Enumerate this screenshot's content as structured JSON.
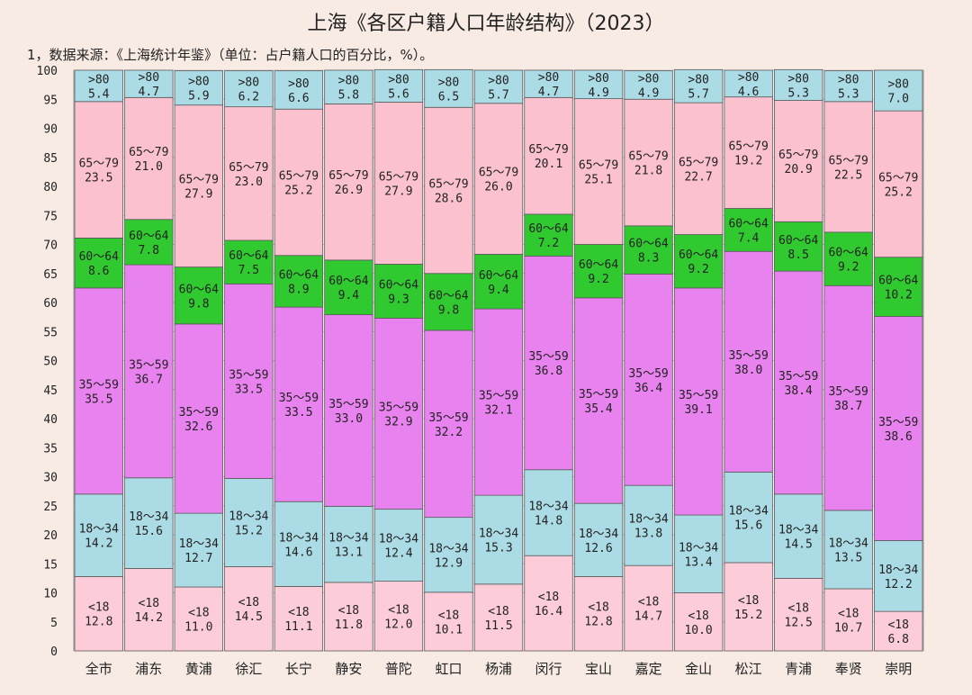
{
  "chart_data": {
    "type": "bar",
    "stacked": true,
    "title": "上海《各区户籍人口年龄结构》（2023）",
    "subtitle": "1，数据来源：《上海统计年鉴》（单位：占户籍人口的百分比，%）。",
    "ylim": [
      0,
      100
    ],
    "yticks": [
      "0",
      "5",
      "10",
      "15",
      "20",
      "25",
      "30",
      "35",
      "40",
      "45",
      "50",
      "55",
      "60",
      "65",
      "70",
      "75",
      "80",
      "85",
      "90",
      "95",
      "100"
    ],
    "categories": [
      "全市",
      "浦东",
      "黄浦",
      "徐汇",
      "长宁",
      "静安",
      "普陀",
      "虹口",
      "杨浦",
      "闵行",
      "宝山",
      "嘉定",
      "金山",
      "松江",
      "青浦",
      "奉贤",
      "崇明"
    ],
    "colors": {
      "<18": "#fccdd8",
      "18~34": "#abdbe5",
      "35~59": "#e882ee",
      "60~64": "#30c930",
      "65~79": "#fbc1cf",
      ">80": "#abdbe5"
    },
    "series": [
      {
        "name": "<18",
        "label": "<18",
        "values": [
          12.8,
          14.2,
          11.0,
          14.5,
          11.1,
          11.8,
          12.0,
          10.1,
          11.5,
          16.4,
          12.8,
          14.7,
          10.0,
          15.2,
          12.5,
          10.7,
          6.8
        ],
        "value_labels": [
          "12.8",
          "14.2",
          "11.0",
          "14.5",
          "11.1",
          "11.8",
          "12.0",
          "10.1",
          "11.5",
          "16.4",
          "12.8",
          "14.7",
          "10.0",
          "15.2",
          "12.5",
          "10.7",
          "6.8"
        ]
      },
      {
        "name": "18~34",
        "label": "18～34",
        "values": [
          14.2,
          15.6,
          12.7,
          15.2,
          14.6,
          13.1,
          12.4,
          12.9,
          15.3,
          14.8,
          12.6,
          13.8,
          13.4,
          15.6,
          14.5,
          13.5,
          12.2
        ],
        "value_labels": [
          "14.2",
          "15.6",
          "12.7",
          "15.2",
          "14.6",
          "13.1",
          "12.4",
          "12.9",
          "15.3",
          "14.8",
          "12.6",
          "13.8",
          "13.4",
          "15.6",
          "14.5",
          "13.5",
          "12.2"
        ]
      },
      {
        "name": "35~59",
        "label": "35～59",
        "values": [
          35.5,
          36.7,
          32.6,
          33.5,
          33.5,
          33.0,
          32.9,
          32.2,
          32.1,
          36.8,
          35.4,
          36.4,
          39.1,
          38.0,
          38.4,
          38.7,
          38.6
        ],
        "value_labels": [
          "35.5",
          "36.7",
          "32.6",
          "33.5",
          "33.5",
          "33.0",
          "32.9",
          "32.2",
          "32.1",
          "36.8",
          "35.4",
          "36.4",
          "39.1",
          "38.0",
          "38.4",
          "38.7",
          "38.6"
        ]
      },
      {
        "name": "60~64",
        "label": "60～64",
        "values": [
          8.6,
          7.8,
          9.8,
          7.5,
          8.9,
          9.4,
          9.3,
          9.8,
          9.4,
          7.2,
          9.2,
          8.3,
          9.2,
          7.4,
          8.5,
          9.2,
          10.2
        ],
        "value_labels": [
          "8.6",
          "7.8",
          "9.8",
          "7.5",
          "8.9",
          "9.4",
          "9.3",
          "9.8",
          "9.4",
          "7.2",
          "9.2",
          "8.3",
          "9.2",
          "7.4",
          "8.5",
          "9.2",
          "10.2"
        ]
      },
      {
        "name": "65~79",
        "label": "65～79",
        "values": [
          23.5,
          21.0,
          27.9,
          23.0,
          25.2,
          26.9,
          27.9,
          28.6,
          26.0,
          20.1,
          25.1,
          21.8,
          22.7,
          19.2,
          20.9,
          22.5,
          25.2
        ],
        "value_labels": [
          "23.5",
          "21.0",
          "27.9",
          "23.0",
          "25.2",
          "26.9",
          "27.9",
          "28.6",
          "26.0",
          "20.1",
          "25.1",
          "21.8",
          "22.7",
          "19.2",
          "20.9",
          "22.5",
          "25.2"
        ]
      },
      {
        "name": ">80",
        "label": ">80",
        "values": [
          5.4,
          4.7,
          5.9,
          6.2,
          6.6,
          5.8,
          5.6,
          6.5,
          5.7,
          4.7,
          4.9,
          4.9,
          5.7,
          4.6,
          5.3,
          5.3,
          7.0
        ],
        "value_labels": [
          "5.4",
          "4.7",
          "5.9",
          "6.2",
          "6.6",
          "5.8",
          "5.6",
          "6.5",
          "5.7",
          "4.7",
          "4.9",
          "4.9",
          "5.7",
          "4.6",
          "5.3",
          "5.3",
          "7.0"
        ]
      }
    ]
  }
}
